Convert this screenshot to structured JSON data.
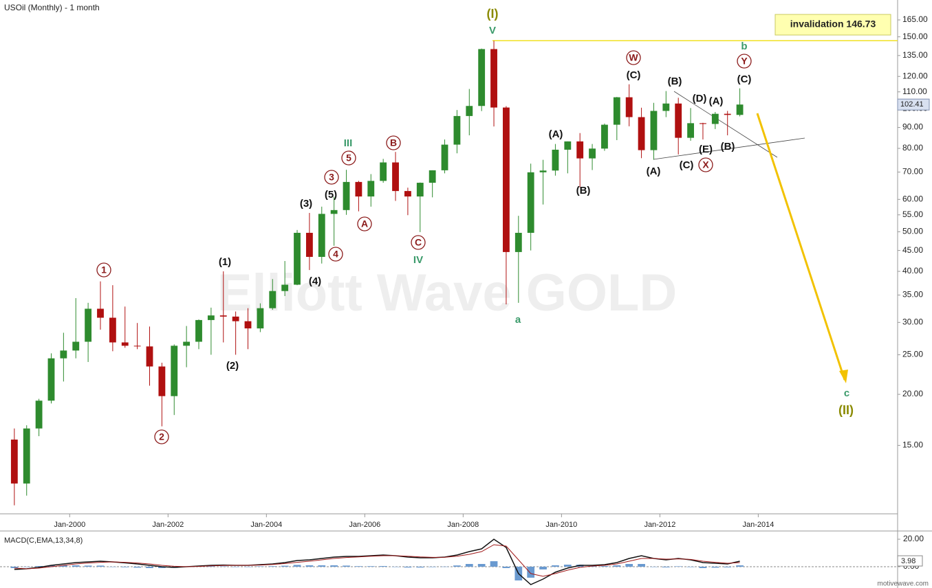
{
  "chart_data": [
    {
      "type": "candlestick",
      "title": "USOil (Monthly) - 1 month",
      "log_scale": true,
      "up_color": "#2e8b2e",
      "down_color": "#b01010",
      "x": [
        "1998-10",
        "1999-01",
        "1999-04",
        "1999-07",
        "1999-10",
        "2000-01",
        "2000-04",
        "2000-07",
        "2000-10",
        "2001-01",
        "2001-04",
        "2001-07",
        "2001-10",
        "2002-01",
        "2002-04",
        "2002-07",
        "2002-10",
        "2003-01",
        "2003-04",
        "2003-07",
        "2003-10",
        "2004-01",
        "2004-04",
        "2004-07",
        "2004-10",
        "2005-01",
        "2005-04",
        "2005-07",
        "2005-10",
        "2006-01",
        "2006-04",
        "2006-07",
        "2006-10",
        "2007-01",
        "2007-04",
        "2007-07",
        "2007-10",
        "2008-01",
        "2008-04",
        "2008-07",
        "2008-10",
        "2009-01",
        "2009-04",
        "2009-07",
        "2009-10",
        "2010-01",
        "2010-04",
        "2010-07",
        "2010-10",
        "2011-01",
        "2011-04",
        "2011-07",
        "2011-10",
        "2012-01",
        "2012-04",
        "2012-07",
        "2012-10",
        "2013-01",
        "2013-04",
        "2013-07"
      ],
      "open": [
        15.5,
        12.1,
        16.5,
        19.3,
        24.5,
        25.6,
        26.9,
        32.4,
        30.8,
        26.8,
        26.3,
        26.2,
        23.4,
        19.8,
        26.3,
        26.9,
        30.4,
        31.2,
        31.0,
        30.2,
        29.0,
        32.5,
        35.8,
        37.1,
        49.7,
        43.4,
        55.3,
        56.5,
        66.2,
        61.0,
        66.6,
        73.9,
        62.9,
        61.0,
        65.9,
        70.7,
        81.7,
        96.0,
        101.6,
        140.0,
        100.7,
        44.6,
        49.7,
        69.9,
        70.6,
        79.4,
        83.2,
        75.6,
        79.9,
        91.4,
        106.7,
        95.4,
        79.2,
        98.8,
        103.0,
        84.9,
        92.2,
        91.8,
        97.2,
        96.6
      ],
      "high": [
        16.5,
        16.8,
        19.5,
        25.2,
        28.3,
        34.4,
        33.5,
        37.8,
        37.0,
        32.8,
        29.9,
        29.3,
        23.9,
        26.5,
        29.4,
        30.5,
        32.6,
        40.0,
        31.9,
        32.5,
        33.4,
        38.3,
        42.4,
        50.5,
        55.6,
        57.6,
        60.9,
        70.9,
        66.6,
        69.2,
        75.4,
        78.4,
        64.1,
        66.0,
        70.7,
        84.1,
        99.3,
        111.8,
        140.4,
        146.7,
        101.5,
        54.7,
        73.4,
        75.0,
        82.0,
        83.2,
        87.2,
        82.0,
        92.0,
        106.9,
        114.8,
        100.6,
        103.4,
        110.5,
        106.4,
        100.4,
        92.4,
        98.2,
        98.8,
        112.2
      ],
      "low": [
        10.7,
        11.3,
        15.8,
        19.0,
        21.5,
        24.5,
        24.0,
        28.8,
        25.5,
        26.0,
        25.8,
        21.0,
        16.7,
        17.8,
        23.3,
        25.8,
        25.0,
        26.8,
        25.0,
        25.8,
        28.4,
        32.2,
        34.8,
        37.0,
        40.3,
        41.8,
        46.2,
        55.0,
        56.1,
        57.6,
        65.9,
        59.5,
        54.9,
        49.9,
        60.7,
        69.5,
        77.8,
        86.1,
        98.7,
        90.5,
        33.2,
        33.5,
        45.0,
        58.3,
        68.6,
        69.5,
        64.2,
        70.8,
        78.9,
        83.8,
        90.6,
        75.7,
        75.0,
        95.4,
        77.3,
        83.5,
        84.1,
        89.2,
        86.1,
        95.8
      ],
      "close": [
        12.1,
        16.5,
        19.3,
        24.5,
        25.6,
        26.9,
        32.4,
        30.8,
        26.8,
        26.3,
        26.2,
        23.4,
        19.8,
        26.3,
        26.9,
        30.4,
        31.2,
        31.0,
        30.2,
        29.0,
        32.5,
        35.8,
        37.1,
        49.7,
        43.4,
        55.3,
        56.5,
        66.2,
        61.0,
        66.6,
        73.9,
        62.9,
        61.0,
        65.9,
        70.7,
        81.7,
        96.0,
        101.6,
        140.0,
        100.7,
        44.6,
        49.7,
        69.9,
        70.6,
        79.4,
        83.2,
        75.6,
        79.9,
        91.4,
        106.7,
        95.4,
        79.2,
        98.8,
        103.0,
        84.9,
        92.2,
        91.8,
        97.2,
        96.6,
        102.41
      ],
      "xlim": [
        "1998-08",
        "2016-11"
      ],
      "xticks": [
        {
          "value": "2000-01",
          "label": "Jan-2000"
        },
        {
          "value": "2002-01",
          "label": "Jan-2002"
        },
        {
          "value": "2004-01",
          "label": "Jan-2004"
        },
        {
          "value": "2006-01",
          "label": "Jan-2006"
        },
        {
          "value": "2008-01",
          "label": "Jan-2008"
        },
        {
          "value": "2010-01",
          "label": "Jan-2010"
        },
        {
          "value": "2012-01",
          "label": "Jan-2012"
        },
        {
          "value": "2014-01",
          "label": "Jan-2014"
        }
      ],
      "ylim": [
        10.2,
        184.6
      ],
      "yticks": [
        {
          "value": 15,
          "label": "15.00"
        },
        {
          "value": 20,
          "label": "20.00"
        },
        {
          "value": 25,
          "label": "25.00"
        },
        {
          "value": 30,
          "label": "30.00"
        },
        {
          "value": 35,
          "label": "35.00"
        },
        {
          "value": 40,
          "label": "40.00"
        },
        {
          "value": 45,
          "label": "45.00"
        },
        {
          "value": 50,
          "label": "50.00"
        },
        {
          "value": 55,
          "label": "55.00"
        },
        {
          "value": 60,
          "label": "60.00"
        },
        {
          "value": 70,
          "label": "70.00"
        },
        {
          "value": 80,
          "label": "80.00"
        },
        {
          "value": 90,
          "label": "90.00"
        },
        {
          "value": 100,
          "label": "100.00"
        },
        {
          "value": 110,
          "label": "110.00"
        },
        {
          "value": 120,
          "label": "120.00"
        },
        {
          "value": 135,
          "label": "135.00"
        },
        {
          "value": 150,
          "label": "150.00"
        },
        {
          "value": 165,
          "label": "165.00"
        }
      ],
      "invalidation": {
        "label": "invalidation 146.73",
        "value": 146.73,
        "color": "#f0e020"
      },
      "watermark": "Elliott Wave GOLD",
      "annotations": [
        {
          "text": "(I)",
          "color": "#8a8a00"
        },
        {
          "text": "V",
          "color": "#3a9a6a"
        },
        {
          "text": "W",
          "color": "#8b1a1a",
          "circled": true
        },
        {
          "text": "(C)",
          "color": "#111"
        },
        {
          "text": "(B)",
          "color": "#111"
        },
        {
          "text": "(D)",
          "color": "#111"
        },
        {
          "text": "(A)",
          "color": "#111"
        },
        {
          "text": "b",
          "color": "#3a9a6a"
        },
        {
          "text": "Y",
          "color": "#8b1a1a",
          "circled": true
        },
        {
          "text": "(C)",
          "color": "#111"
        },
        {
          "text": "(A)",
          "color": "#111"
        },
        {
          "text": "(B)",
          "color": "#111"
        },
        {
          "text": "(A)",
          "color": "#111"
        },
        {
          "text": "(C)",
          "color": "#111"
        },
        {
          "text": "(E)",
          "color": "#111"
        },
        {
          "text": "X",
          "color": "#8b1a1a",
          "circled": true
        },
        {
          "text": "(B)",
          "color": "#111"
        },
        {
          "text": "III",
          "color": "#3a9a6a"
        },
        {
          "text": "B",
          "color": "#8b1a1a",
          "circled": true
        },
        {
          "text": "5",
          "color": "#8b1a1a",
          "circled": true
        },
        {
          "text": "3",
          "color": "#8b1a1a",
          "circled": true
        },
        {
          "text": "(5)",
          "color": "#111"
        },
        {
          "text": "(3)",
          "color": "#111"
        },
        {
          "text": "A",
          "color": "#8b1a1a",
          "circled": true
        },
        {
          "text": "4",
          "color": "#8b1a1a",
          "circled": true
        },
        {
          "text": "C",
          "color": "#8b1a1a",
          "circled": true
        },
        {
          "text": "IV",
          "color": "#3a9a6a"
        },
        {
          "text": "(4)",
          "color": "#111"
        },
        {
          "text": "(1)",
          "color": "#111"
        },
        {
          "text": "(2)",
          "color": "#111"
        },
        {
          "text": "1",
          "color": "#8b1a1a",
          "circled": true
        },
        {
          "text": "2",
          "color": "#8b1a1a",
          "circled": true
        },
        {
          "text": "a",
          "color": "#3a9a6a"
        },
        {
          "text": "c",
          "color": "#3a9a6a"
        },
        {
          "text": "(II)",
          "color": "#8a8a00"
        }
      ]
    },
    {
      "type": "macd",
      "title": "MACD(C,EMA,13,34,8)",
      "series": [
        {
          "color": "#111",
          "values": [
            -2,
            -1.5,
            -0.5,
            1,
            2,
            3,
            3.5,
            4,
            3.5,
            2.8,
            2,
            1,
            0,
            -0.5,
            0,
            0.5,
            1,
            1.2,
            1,
            1,
            1.5,
            2,
            3,
            4.5,
            5,
            6,
            7,
            7.5,
            7.5,
            8,
            8.5,
            8,
            7,
            6.5,
            6.5,
            7,
            8.5,
            11,
            13,
            20,
            14,
            -5,
            -13,
            -9,
            -4,
            -1,
            1,
            1,
            1.5,
            3,
            6,
            8,
            6,
            5,
            6,
            5,
            3,
            2.5,
            2,
            3.98
          ]
        },
        {
          "color": "#a01818",
          "values": [
            -1,
            -1.5,
            -1,
            0,
            1,
            2,
            2.7,
            3.2,
            3.5,
            3.2,
            2.7,
            2,
            1,
            0.3,
            0,
            0.2,
            0.6,
            0.9,
            1,
            1,
            1.2,
            1.6,
            2.3,
            3.2,
            4,
            5,
            6,
            6.7,
            7.1,
            7.6,
            8,
            8,
            7.6,
            7.1,
            6.8,
            6.9,
            7.6,
            9,
            11,
            16,
            15,
            5,
            -5,
            -7,
            -5,
            -2.5,
            -0.5,
            0.5,
            1,
            2,
            4,
            6,
            6,
            5.5,
            5.7,
            5.3,
            4,
            3.2,
            2.5,
            3
          ]
        }
      ],
      "histogram": {
        "color": "#6a9ad0",
        "values": [
          -1,
          0,
          0.5,
          1,
          1,
          1,
          0.8,
          0.8,
          0,
          -0.4,
          -0.7,
          -1,
          -1,
          -0.8,
          0,
          0.3,
          0.4,
          0.3,
          0,
          0,
          0.3,
          0.4,
          0.7,
          1.3,
          1,
          1,
          1,
          0.8,
          0.4,
          0.4,
          0.5,
          0,
          -0.6,
          -0.6,
          -0.3,
          0.1,
          0.9,
          2,
          2,
          4,
          -1,
          -10,
          -8,
          -2,
          1,
          1.5,
          1.5,
          0.5,
          0.5,
          1,
          2,
          2,
          0,
          -0.5,
          0.3,
          -0.3,
          -1,
          -0.7,
          -0.5,
          0.98
        ]
      },
      "ylim": [
        -14,
        25
      ],
      "yticks": [
        {
          "value": 20,
          "label": "20.00"
        },
        {
          "value": 0,
          "label": "0.00"
        }
      ]
    }
  ],
  "footer": "motivewave.com"
}
